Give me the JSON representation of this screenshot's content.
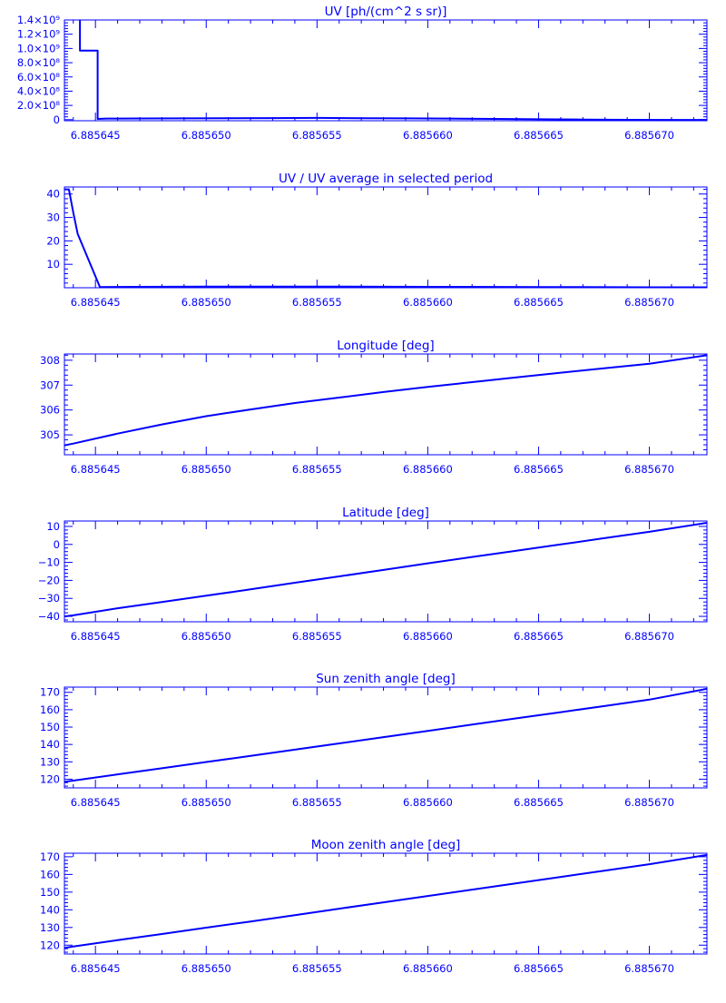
{
  "page": {
    "background": "#ffffff",
    "ink": "#0000ff"
  },
  "chart_data": [
    {
      "type": "line",
      "title": "UV [ph/(cm^2 s sr)]",
      "xlim": [
        6.8856436,
        6.8856726
      ],
      "ylim": [
        -15000000,
        1400000000
      ],
      "x_ticks": [
        "6.885645",
        "6.885650",
        "6.885655",
        "6.885660",
        "6.885665",
        "6.885670"
      ],
      "y_ticks": [
        {
          "v": 0,
          "label": "0"
        },
        {
          "v": 200000000,
          "label": "2.0×10⁸"
        },
        {
          "v": 400000000,
          "label": "4.0×10⁸"
        },
        {
          "v": 600000000,
          "label": "6.0×10⁸"
        },
        {
          "v": 800000000,
          "label": "8.0×10⁸"
        },
        {
          "v": 1000000000,
          "label": "1.0×10⁹"
        },
        {
          "v": 1200000000,
          "label": "1.2×10⁹"
        },
        {
          "v": 1400000000,
          "label": "1.4×10⁹"
        }
      ],
      "series": [
        {
          "x": [
            6.8856443,
            6.8856443,
            6.8856451,
            6.8856451,
            6.8856455,
            6.885647,
            6.885649,
            6.885651,
            6.885653,
            6.885655,
            6.885657,
            6.885659,
            6.885661,
            6.885663,
            6.885665,
            6.885667,
            6.885669,
            6.885671,
            6.8856726
          ],
          "y": [
            1400000000,
            970000000,
            970000000,
            10000000,
            15000000,
            17000000,
            18000000,
            20000000,
            22000000,
            25000000,
            21000000,
            18000000,
            15000000,
            10000000,
            5000000,
            1000000,
            -2000000,
            -3000000,
            -4000000
          ]
        }
      ]
    },
    {
      "type": "line",
      "title": "UV / UV average in selected period",
      "xlim": [
        6.8856436,
        6.8856726
      ],
      "ylim": [
        0,
        43
      ],
      "x_ticks": [
        "6.885645",
        "6.885650",
        "6.885655",
        "6.885660",
        "6.885665",
        "6.885670"
      ],
      "y_ticks": [
        {
          "v": 10,
          "label": "10"
        },
        {
          "v": 20,
          "label": "20"
        },
        {
          "v": 30,
          "label": "30"
        },
        {
          "v": 40,
          "label": "40"
        }
      ],
      "series": [
        {
          "x": [
            6.8856436,
            6.8856438,
            6.885644,
            6.8856442,
            6.8856452,
            6.885647,
            6.88565,
            6.885655,
            6.88566,
            6.885665,
            6.88567,
            6.8856726
          ],
          "y": [
            42,
            42,
            32,
            23,
            0.3,
            0.4,
            0.5,
            0.5,
            0.4,
            0.3,
            0.2,
            0.2
          ]
        }
      ]
    },
    {
      "type": "line",
      "title": "Longitude [deg]",
      "xlim": [
        6.8856436,
        6.8856726
      ],
      "ylim": [
        304.2,
        308.25
      ],
      "x_ticks": [
        "6.885645",
        "6.885650",
        "6.885655",
        "6.885660",
        "6.885665",
        "6.885670"
      ],
      "y_ticks": [
        {
          "v": 305,
          "label": "305"
        },
        {
          "v": 306,
          "label": "306"
        },
        {
          "v": 307,
          "label": "307"
        },
        {
          "v": 308,
          "label": "308"
        }
      ],
      "series": [
        {
          "x": [
            6.8856436,
            6.885644,
            6.885646,
            6.885648,
            6.88565,
            6.885652,
            6.885654,
            6.885656,
            6.885658,
            6.88566,
            6.885662,
            6.885664,
            6.885666,
            6.885668,
            6.88567,
            6.8856726
          ],
          "y": [
            304.58,
            304.65,
            305.05,
            305.42,
            305.75,
            306.02,
            306.28,
            306.5,
            306.72,
            306.93,
            307.12,
            307.31,
            307.5,
            307.68,
            307.86,
            308.2
          ]
        }
      ]
    },
    {
      "type": "line",
      "title": "Latitude [deg]",
      "xlim": [
        6.8856436,
        6.8856726
      ],
      "ylim": [
        -43,
        13
      ],
      "x_ticks": [
        "6.885645",
        "6.885650",
        "6.885655",
        "6.885660",
        "6.885665",
        "6.885670"
      ],
      "y_ticks": [
        {
          "v": -40,
          "label": "−40"
        },
        {
          "v": -30,
          "label": "−30"
        },
        {
          "v": -20,
          "label": "−20"
        },
        {
          "v": -10,
          "label": "−10"
        },
        {
          "v": 0,
          "label": "0"
        },
        {
          "v": 10,
          "label": "10"
        }
      ],
      "series": [
        {
          "x": [
            6.8856436,
            6.885644,
            6.885646,
            6.885648,
            6.88565,
            6.885652,
            6.885654,
            6.885656,
            6.885658,
            6.88566,
            6.885662,
            6.885664,
            6.885666,
            6.885668,
            6.88567,
            6.8856726
          ],
          "y": [
            -40,
            -39.4,
            -35.5,
            -32,
            -28.5,
            -25,
            -21.3,
            -17.8,
            -14.2,
            -10.5,
            -7,
            -3.5,
            0,
            3.5,
            7,
            12
          ]
        }
      ]
    },
    {
      "type": "line",
      "title": "Sun zenith angle [deg]",
      "xlim": [
        6.8856436,
        6.8856726
      ],
      "ylim": [
        115,
        173
      ],
      "x_ticks": [
        "6.885645",
        "6.885650",
        "6.885655",
        "6.885660",
        "6.885665",
        "6.885670"
      ],
      "y_ticks": [
        {
          "v": 120,
          "label": "120"
        },
        {
          "v": 130,
          "label": "130"
        },
        {
          "v": 140,
          "label": "140"
        },
        {
          "v": 150,
          "label": "150"
        },
        {
          "v": 160,
          "label": "160"
        },
        {
          "v": 170,
          "label": "170"
        }
      ],
      "series": [
        {
          "x": [
            6.8856436,
            6.885644,
            6.885646,
            6.885648,
            6.88565,
            6.885652,
            6.885654,
            6.885656,
            6.885658,
            6.88566,
            6.885662,
            6.885664,
            6.885666,
            6.885668,
            6.88567,
            6.8856726
          ],
          "y": [
            118.5,
            119.2,
            122.8,
            126.3,
            129.9,
            133.4,
            137,
            140.6,
            144.2,
            147.8,
            151.4,
            155,
            158.6,
            162.2,
            165.8,
            172
          ]
        }
      ]
    },
    {
      "type": "line",
      "title": "Moon zenith angle [deg]",
      "xlim": [
        6.8856436,
        6.8856726
      ],
      "ylim": [
        115,
        172
      ],
      "x_ticks": [
        "6.885645",
        "6.885650",
        "6.885655",
        "6.885660",
        "6.885665",
        "6.885670"
      ],
      "y_ticks": [
        {
          "v": 120,
          "label": "120"
        },
        {
          "v": 130,
          "label": "130"
        },
        {
          "v": 140,
          "label": "140"
        },
        {
          "v": 150,
          "label": "150"
        },
        {
          "v": 160,
          "label": "160"
        },
        {
          "v": 170,
          "label": "170"
        }
      ],
      "series": [
        {
          "x": [
            6.8856436,
            6.885644,
            6.885646,
            6.885648,
            6.88565,
            6.885652,
            6.885654,
            6.885656,
            6.885658,
            6.88566,
            6.885662,
            6.885664,
            6.885666,
            6.885668,
            6.88567,
            6.8856726
          ],
          "y": [
            118.5,
            119.2,
            122.8,
            126.3,
            129.9,
            133.4,
            137,
            140.6,
            144.2,
            147.8,
            151.4,
            155,
            158.6,
            162.2,
            165.8,
            171
          ]
        }
      ]
    }
  ]
}
